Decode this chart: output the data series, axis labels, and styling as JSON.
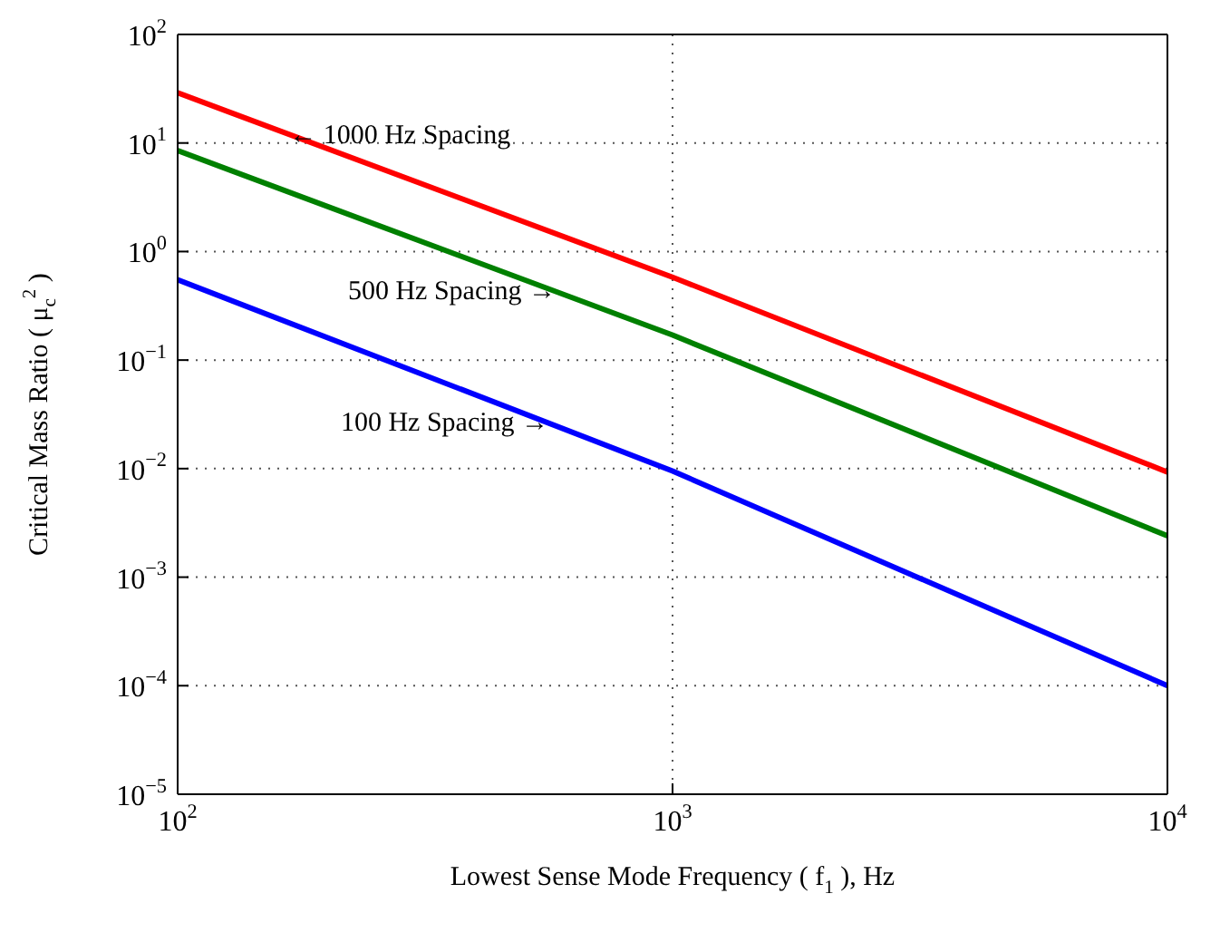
{
  "chart_data": {
    "type": "line",
    "xlabel": "Lowest Sense Mode Frequency ( f$_{1}$ ), Hz",
    "ylabel": "Critical Mass Ratio ( μ$_{c}$$^{2}$ )",
    "log": "xy",
    "grid": true,
    "marker": "none",
    "line_style": "solid",
    "xlim": [
      100,
      10000
    ],
    "xticks": [
      {
        "value": 100,
        "label": "10$^{2}$"
      },
      {
        "value": 1000,
        "label": "10$^{3}$"
      },
      {
        "value": 10000,
        "label": "10$^{4}$"
      }
    ],
    "ylim": [
      1e-05,
      100
    ],
    "yticks": [
      {
        "value": 1e-05,
        "label": "10$^{−5}$"
      },
      {
        "value": 0.0001,
        "label": "10$^{−4}$"
      },
      {
        "value": 0.001,
        "label": "10$^{−3}$"
      },
      {
        "value": 0.01,
        "label": "10$^{−2}$"
      },
      {
        "value": 0.1,
        "label": "10$^{−1}$"
      },
      {
        "value": 1,
        "label": "10$^{0}$"
      },
      {
        "value": 10,
        "label": "10$^{1}$"
      },
      {
        "value": 100,
        "label": "10$^{2}$"
      }
    ],
    "x": [
      100,
      1000,
      10000
    ],
    "series": [
      {
        "color": "#ff0000",
        "values": [
          29,
          0.58,
          0.0093
        ]
      },
      {
        "color": "#008000",
        "values": [
          8.5,
          0.17,
          0.0024
        ]
      },
      {
        "color": "#0000ff",
        "values": [
          0.55,
          0.0095,
          0.0001
        ]
      }
    ],
    "annotations": [
      {
        "text": "← 1000 Hz Spacing",
        "x": 171,
        "y": 12
      },
      {
        "text": "500 Hz Spacing →",
        "x": 571,
        "y": 0.44
      },
      {
        "text": "100 Hz Spacing →",
        "x": 552,
        "y": 0.027
      }
    ]
  }
}
